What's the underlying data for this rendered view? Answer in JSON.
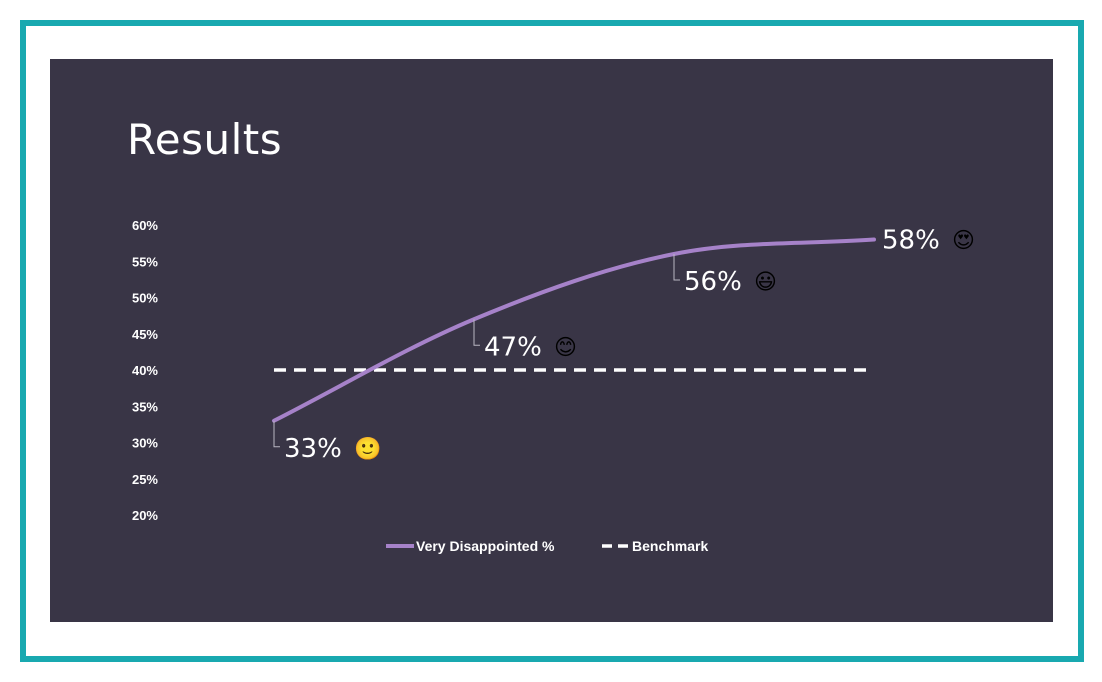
{
  "slide": {
    "title": "Results",
    "frame_color": "#19a9b0",
    "background_color": "#393546"
  },
  "chart_data": {
    "type": "line",
    "title": "Results",
    "xlabel": "",
    "ylabel": "",
    "ylim": [
      0.2,
      0.6
    ],
    "y_ticks": [
      "60%",
      "55%",
      "50%",
      "45%",
      "40%",
      "35%",
      "30%",
      "25%",
      "20%"
    ],
    "grid": false,
    "legend_position": "bottom",
    "x": [
      1,
      2,
      3,
      4
    ],
    "series": [
      {
        "name": "Very Disappointed %",
        "color": "#a682c9",
        "style": "solid-smooth",
        "values": [
          0.33,
          0.47,
          0.56,
          0.58
        ],
        "labels": [
          "33%",
          "47%",
          "56%",
          "58%"
        ],
        "emoji": [
          "🙂",
          "😊",
          "😃",
          "😍"
        ],
        "emoji_icons": [
          "slightly-smiling-face-icon",
          "smiling-face-icon",
          "grinning-face-icon",
          "heart-eyes-face-icon"
        ]
      },
      {
        "name": "Benchmark",
        "color": "#ffffff",
        "style": "dashed",
        "values": [
          0.4,
          0.4,
          0.4,
          0.4
        ]
      }
    ]
  }
}
